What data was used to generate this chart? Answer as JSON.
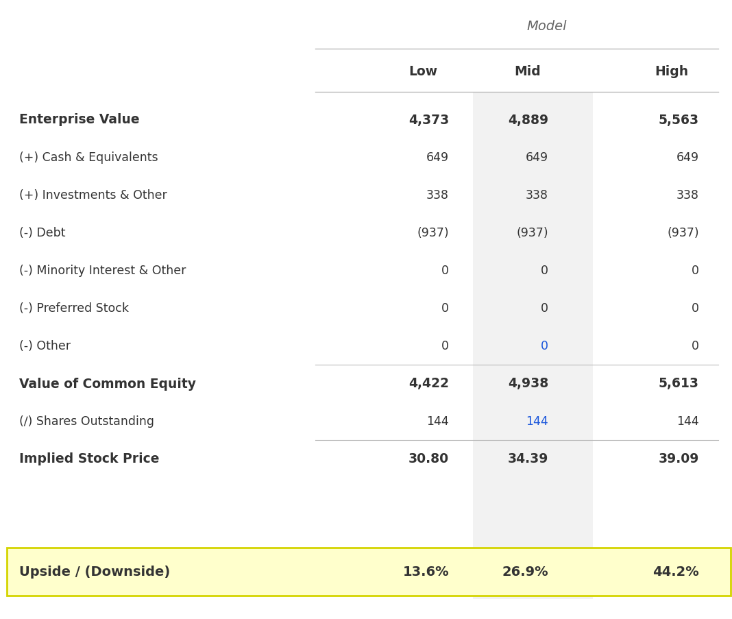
{
  "title": "Model",
  "columns": [
    "Low",
    "Mid",
    "High"
  ],
  "rows": [
    {
      "label": "Enterprise Value",
      "values": [
        "4,373",
        "4,889",
        "5,563"
      ],
      "bold": true,
      "bottom_border": false,
      "colors": [
        "#333333",
        "#333333",
        "#333333"
      ]
    },
    {
      "label": "(+) Cash & Equivalents",
      "values": [
        "649",
        "649",
        "649"
      ],
      "bold": false,
      "bottom_border": false,
      "colors": [
        "#333333",
        "#333333",
        "#333333"
      ]
    },
    {
      "label": "(+) Investments & Other",
      "values": [
        "338",
        "338",
        "338"
      ],
      "bold": false,
      "bottom_border": false,
      "colors": [
        "#333333",
        "#333333",
        "#333333"
      ]
    },
    {
      "label": "(-) Debt",
      "values": [
        "(937)",
        "(937)",
        "(937)"
      ],
      "bold": false,
      "bottom_border": false,
      "colors": [
        "#333333",
        "#333333",
        "#333333"
      ]
    },
    {
      "label": "(-) Minority Interest & Other",
      "values": [
        "0",
        "0",
        "0"
      ],
      "bold": false,
      "bottom_border": false,
      "colors": [
        "#333333",
        "#333333",
        "#333333"
      ]
    },
    {
      "label": "(-) Preferred Stock",
      "values": [
        "0",
        "0",
        "0"
      ],
      "bold": false,
      "bottom_border": false,
      "colors": [
        "#333333",
        "#333333",
        "#333333"
      ]
    },
    {
      "label": "(-) Other",
      "values": [
        "0",
        "0",
        "0"
      ],
      "bold": false,
      "bottom_border": true,
      "colors": [
        "#333333",
        "#1a56db",
        "#333333"
      ]
    },
    {
      "label": "Value of Common Equity",
      "values": [
        "4,422",
        "4,938",
        "5,613"
      ],
      "bold": true,
      "bottom_border": false,
      "colors": [
        "#333333",
        "#333333",
        "#333333"
      ]
    },
    {
      "label": "(∕) Shares Outstanding",
      "values": [
        "144",
        "144",
        "144"
      ],
      "bold": false,
      "bottom_border": true,
      "colors": [
        "#333333",
        "#1a56db",
        "#333333"
      ]
    },
    {
      "label": "Implied Stock Price",
      "values": [
        "30.80",
        "34.39",
        "39.09"
      ],
      "bold": true,
      "bottom_border": false,
      "colors": [
        "#333333",
        "#333333",
        "#333333"
      ]
    }
  ],
  "upside_row": {
    "label": "Upside / (Downside)",
    "values": [
      "13.6%",
      "26.9%",
      "44.2%"
    ],
    "bold": true,
    "bg_color": "#ffffcc",
    "border_color": "#d4d400",
    "text_color": "#333333"
  },
  "bg_color": "#ffffff",
  "mid_col_bg": "#f2f2f2",
  "header_line_color": "#bbbbbb",
  "data_line_color": "#bbbbbb",
  "col_label_color": "#333333",
  "title_color": "#666666"
}
